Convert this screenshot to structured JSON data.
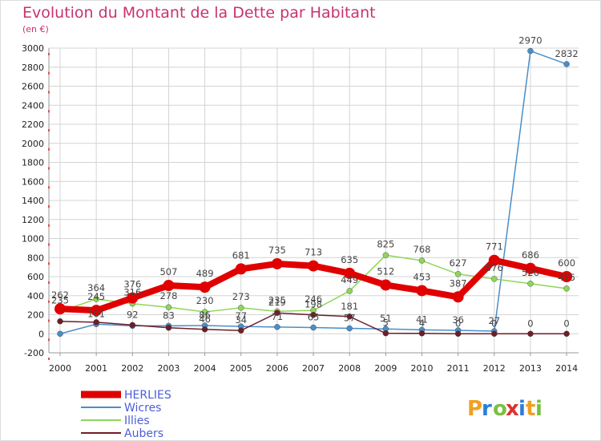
{
  "chart_data": {
    "type": "line",
    "title": "Evolution du Montant de la Dette par Habitant",
    "subtitle": "(en €)",
    "categories": [
      "2000",
      "2001",
      "2002",
      "2003",
      "2004",
      "2005",
      "2006",
      "2007",
      "2008",
      "2009",
      "2010",
      "2011",
      "2012",
      "2013",
      "2014"
    ],
    "ylim": [
      -200,
      3000
    ],
    "yticks": [
      -200,
      0,
      200,
      400,
      600,
      800,
      1000,
      1200,
      1400,
      1600,
      1800,
      2000,
      2200,
      2400,
      2600,
      2800,
      3000
    ],
    "grid": true,
    "legend_position": "bottom-left",
    "series": [
      {
        "name": "HERLIES",
        "color": "#e00000",
        "values": [
          262,
          245,
          376,
          507,
          489,
          681,
          735,
          713,
          635,
          512,
          453,
          387,
          771,
          686,
          600
        ],
        "labels": [
          "262",
          "245",
          "376",
          "507",
          "489",
          "681",
          "735",
          "713",
          "635",
          "512",
          "453",
          "387",
          "771",
          "686",
          "600"
        ]
      },
      {
        "name": "Wicres",
        "color": "#4a8ec8",
        "values": [
          0,
          101,
          83,
          83,
          86,
          77,
          71,
          65,
          57,
          51,
          41,
          36,
          27,
          2970,
          2832
        ],
        "labels": [
          "",
          "101",
          "",
          "83",
          "86",
          "77",
          "71",
          "65",
          "57",
          "51",
          "41",
          "36",
          "27",
          "2970",
          "2832"
        ]
      },
      {
        "name": "Illies",
        "color": "#8ed65a",
        "values": [
          235,
          364,
          316,
          278,
          230,
          273,
          235,
          246,
          449,
          825,
          768,
          627,
          576,
          526,
          475
        ],
        "labels": [
          "235",
          "364",
          "316",
          "278",
          "230",
          "273",
          "235",
          "246",
          "449",
          "825",
          "768",
          "627",
          "576",
          "526",
          "475"
        ]
      },
      {
        "name": "Aubers",
        "color": "#6e1e28",
        "values": [
          131,
          121,
          92,
          63,
          46,
          34,
          219,
          198,
          181,
          5,
          4,
          0,
          0,
          0,
          0
        ],
        "labels": [
          "",
          "",
          "92",
          "",
          "46",
          "34",
          "219",
          "198",
          "181",
          "5",
          "4",
          "0",
          "0",
          "0",
          "0"
        ]
      }
    ]
  },
  "logo_text": "Proxiti",
  "colors": {
    "title": "#c8326e",
    "legend_label": "#4a5ed8"
  }
}
